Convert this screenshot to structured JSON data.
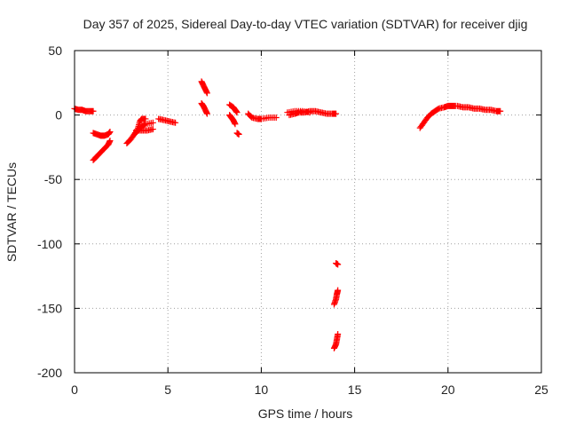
{
  "chart_data": {
    "type": "scatter",
    "title": "Day 357 of 2025, Sidereal Day-to-day VTEC variation (SDTVAR) for receiver djig",
    "xlabel": "GPS time / hours",
    "ylabel": "SDTVAR / TECUs",
    "xlim": [
      0,
      25
    ],
    "ylim": [
      -200,
      50
    ],
    "xticks": [
      0,
      5,
      10,
      15,
      20,
      25
    ],
    "yticks": [
      50,
      0,
      -50,
      -100,
      -150,
      -200
    ],
    "grid": true,
    "marker": "+",
    "color": "#ff0000",
    "segments": [
      [
        [
          0.0,
          5
        ],
        [
          0.2,
          4
        ],
        [
          0.4,
          4
        ],
        [
          0.6,
          3
        ],
        [
          0.8,
          3
        ],
        [
          1.0,
          3
        ]
      ],
      [
        [
          1.0,
          -35
        ],
        [
          1.2,
          -32
        ],
        [
          1.4,
          -29
        ],
        [
          1.6,
          -26
        ],
        [
          1.8,
          -23
        ],
        [
          1.9,
          -20
        ]
      ],
      [
        [
          1.0,
          -14
        ],
        [
          1.2,
          -15
        ],
        [
          1.4,
          -16
        ],
        [
          1.6,
          -16
        ],
        [
          1.8,
          -15
        ],
        [
          1.9,
          -13
        ]
      ],
      [
        [
          2.8,
          -22
        ],
        [
          3.0,
          -19
        ],
        [
          3.2,
          -15
        ],
        [
          3.4,
          -12
        ],
        [
          3.6,
          -9
        ],
        [
          3.8,
          -7
        ],
        [
          4.2,
          -6
        ]
      ],
      [
        [
          3.3,
          -12
        ],
        [
          3.6,
          -12
        ],
        [
          3.9,
          -12
        ],
        [
          4.2,
          -11
        ]
      ],
      [
        [
          3.2,
          -15
        ],
        [
          3.4,
          -10
        ],
        [
          3.5,
          -5
        ],
        [
          3.6,
          -3
        ],
        [
          3.8,
          -3
        ]
      ],
      [
        [
          4.5,
          -3
        ],
        [
          4.8,
          -4
        ],
        [
          5.1,
          -5
        ],
        [
          5.4,
          -6
        ]
      ],
      [
        [
          6.8,
          26
        ],
        [
          6.9,
          23
        ],
        [
          7.0,
          20
        ],
        [
          7.1,
          17
        ]
      ],
      [
        [
          6.8,
          9
        ],
        [
          6.9,
          7
        ],
        [
          7.0,
          4
        ],
        [
          7.1,
          1
        ]
      ],
      [
        [
          8.3,
          0
        ],
        [
          8.4,
          -2
        ],
        [
          8.5,
          -4
        ],
        [
          8.6,
          -7
        ]
      ],
      [
        [
          8.3,
          8
        ],
        [
          8.5,
          6
        ],
        [
          8.6,
          4
        ],
        [
          8.7,
          2
        ]
      ],
      [
        [
          8.7,
          -14
        ],
        [
          8.8,
          -15
        ]
      ],
      [
        [
          9.3,
          1
        ],
        [
          9.5,
          -2
        ],
        [
          9.8,
          -3
        ],
        [
          10.0,
          -3
        ],
        [
          10.4,
          -2
        ],
        [
          10.8,
          -2
        ]
      ],
      [
        [
          11.5,
          0
        ],
        [
          11.8,
          1
        ],
        [
          12.0,
          2
        ],
        [
          12.3,
          2
        ],
        [
          12.6,
          3
        ],
        [
          12.9,
          3
        ],
        [
          13.2,
          2
        ],
        [
          13.5,
          1
        ],
        [
          13.8,
          1
        ],
        [
          14.0,
          1
        ]
      ],
      [
        [
          11.4,
          2
        ],
        [
          11.8,
          3
        ],
        [
          12.2,
          3
        ],
        [
          12.6,
          2
        ]
      ],
      [
        [
          14.0,
          -115
        ],
        [
          14.1,
          -116
        ]
      ],
      [
        [
          13.9,
          -147
        ],
        [
          14.0,
          -143
        ],
        [
          14.05,
          -139
        ],
        [
          14.1,
          -136
        ]
      ],
      [
        [
          13.9,
          -181
        ],
        [
          14.0,
          -178
        ],
        [
          14.05,
          -174
        ],
        [
          14.1,
          -170
        ]
      ],
      [
        [
          18.5,
          -10
        ],
        [
          18.7,
          -6
        ],
        [
          18.9,
          -2
        ],
        [
          19.1,
          1
        ],
        [
          19.3,
          3
        ],
        [
          19.5,
          5
        ],
        [
          19.8,
          6
        ],
        [
          20.0,
          7
        ],
        [
          20.2,
          7
        ],
        [
          20.4,
          7
        ]
      ],
      [
        [
          20.5,
          7
        ],
        [
          20.8,
          6
        ],
        [
          21.1,
          6
        ],
        [
          21.4,
          5
        ],
        [
          21.7,
          5
        ],
        [
          22.0,
          4
        ],
        [
          22.3,
          4
        ],
        [
          22.6,
          3
        ],
        [
          22.8,
          3
        ]
      ]
    ]
  }
}
